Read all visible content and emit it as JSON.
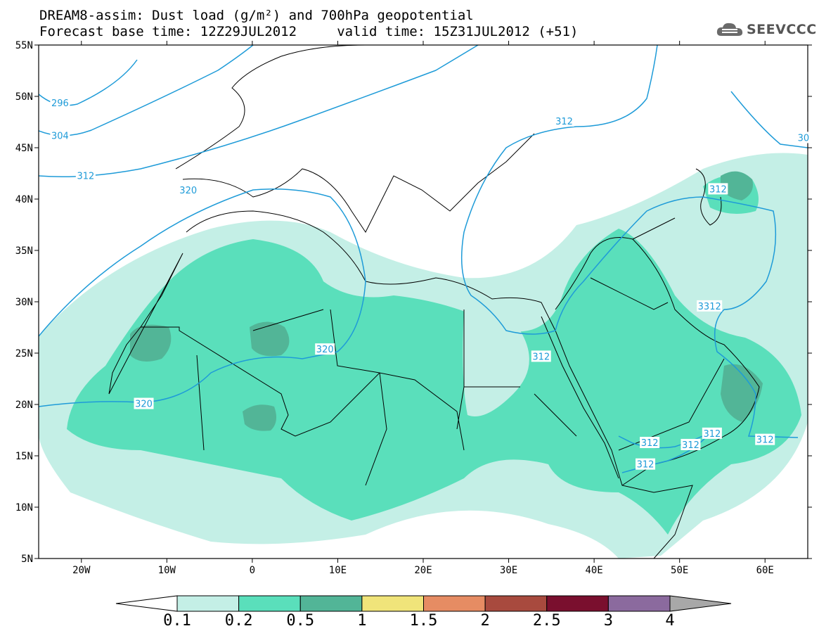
{
  "title": {
    "line1": "DREAM8-assim: Dust load (g/m²) and 700hPa geopotential",
    "line2": "Forecast base time: 12Z29JUL2012     valid time: 15Z31JUL2012 (+51)"
  },
  "logo": {
    "text": "SEEVCCC",
    "icon": "cloud-logo-icon"
  },
  "map": {
    "lon_range": [
      -25,
      65
    ],
    "lat_range": [
      5,
      55
    ],
    "lat_ticks": [
      {
        "value": 55,
        "label": "55N"
      },
      {
        "value": 50,
        "label": "50N"
      },
      {
        "value": 45,
        "label": "45N"
      },
      {
        "value": 40,
        "label": "40N"
      },
      {
        "value": 35,
        "label": "35N"
      },
      {
        "value": 30,
        "label": "30N"
      },
      {
        "value": 25,
        "label": "25N"
      },
      {
        "value": 20,
        "label": "20N"
      },
      {
        "value": 15,
        "label": "15N"
      },
      {
        "value": 10,
        "label": "10N"
      },
      {
        "value": 5,
        "label": "5N"
      }
    ],
    "lon_ticks": [
      {
        "value": -20,
        "label": "20W"
      },
      {
        "value": -10,
        "label": "10W"
      },
      {
        "value": 0,
        "label": "0"
      },
      {
        "value": 10,
        "label": "10E"
      },
      {
        "value": 20,
        "label": "20E"
      },
      {
        "value": 30,
        "label": "30E"
      },
      {
        "value": 40,
        "label": "40E"
      },
      {
        "value": 50,
        "label": "50E"
      },
      {
        "value": 60,
        "label": "60E"
      }
    ],
    "contour_color": "#1e9bd8",
    "contour_labels": [
      {
        "text": "296",
        "lon": -22.5,
        "lat": 49.4
      },
      {
        "text": "304",
        "lon": -22.5,
        "lat": 46.2
      },
      {
        "text": "312",
        "lon": -19.5,
        "lat": 42.3
      },
      {
        "text": "320",
        "lon": -7.5,
        "lat": 40.9
      },
      {
        "text": "320",
        "lon": 8.5,
        "lat": 25.4
      },
      {
        "text": "320",
        "lon": -12.7,
        "lat": 20.1
      },
      {
        "text": "312",
        "lon": 36.5,
        "lat": 47.6
      },
      {
        "text": "312",
        "lon": 54.5,
        "lat": 41.0
      },
      {
        "text": "3312",
        "lon": 53.5,
        "lat": 29.6
      },
      {
        "text": "312",
        "lon": 33.8,
        "lat": 24.7
      },
      {
        "text": "312",
        "lon": 46.5,
        "lat": 16.3
      },
      {
        "text": "312",
        "lon": 51.3,
        "lat": 16.1
      },
      {
        "text": "312",
        "lon": 53.8,
        "lat": 17.2
      },
      {
        "text": "312",
        "lon": 60.0,
        "lat": 16.6
      },
      {
        "text": "312",
        "lon": 46.0,
        "lat": 14.2
      },
      {
        "text": "30",
        "lon": 64.5,
        "lat": 46.0
      }
    ],
    "shading": {
      "band_0.1_0.2": "#c4efe6",
      "band_0.2_0.5": "#5adfbb",
      "band_0.5_1": "#52b597"
    }
  },
  "colorbar": {
    "bins": [
      {
        "color": "#ffffff"
      },
      {
        "color": "#c4efe6"
      },
      {
        "color": "#5adfbb"
      },
      {
        "color": "#52b597"
      },
      {
        "color": "#f0e47a"
      },
      {
        "color": "#e68c63"
      },
      {
        "color": "#a84a3e"
      },
      {
        "color": "#7a0f2e"
      },
      {
        "color": "#8b6a9e"
      },
      {
        "color": "#a8a8a8"
      }
    ],
    "labels": [
      "0.1",
      "0.2",
      "0.5",
      "1",
      "1.5",
      "2",
      "2.5",
      "3",
      "4"
    ]
  }
}
